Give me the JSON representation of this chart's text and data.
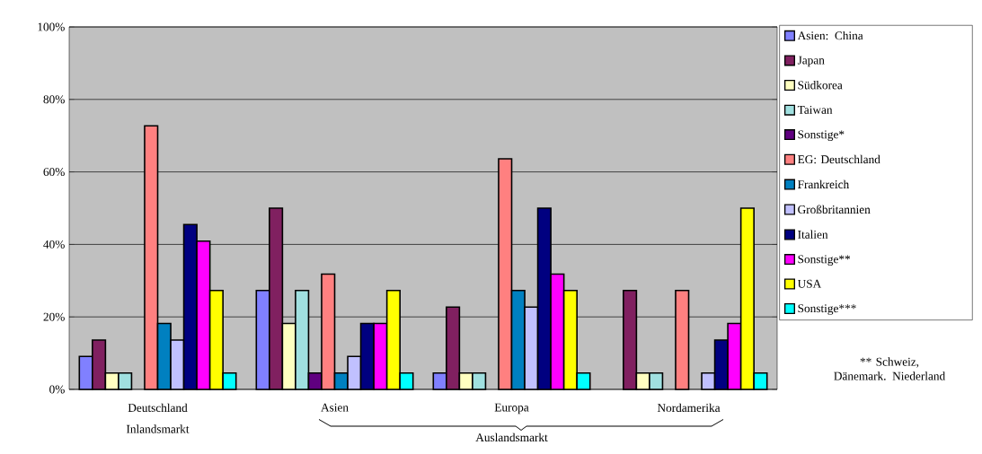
{
  "chart_data": {
    "type": "bar",
    "categories": [
      "Deutschland",
      "Asien",
      "Europa",
      "Nordamerika"
    ],
    "series": [
      {
        "name": "Asien: China",
        "color": "#8080ff",
        "values": [
          9.1,
          27.3,
          4.5,
          0
        ]
      },
      {
        "name": "Japan",
        "color": "#802060",
        "values": [
          13.6,
          50,
          22.7,
          27.3
        ]
      },
      {
        "name": "Südkorea",
        "color": "#ffffc0",
        "values": [
          4.5,
          18.2,
          4.5,
          4.5
        ]
      },
      {
        "name": "Taiwan",
        "color": "#a0e0e0",
        "values": [
          4.5,
          27.3,
          4.5,
          4.5
        ]
      },
      {
        "name": "Sonstige*",
        "color": "#600080",
        "values": [
          0,
          4.5,
          0,
          0
        ]
      },
      {
        "name": "EG: Deutschland",
        "color": "#ff8080",
        "values": [
          72.7,
          31.8,
          63.6,
          27.3
        ]
      },
      {
        "name": "Frankreich",
        "color": "#0080c0",
        "values": [
          18.2,
          4.5,
          27.3,
          0
        ]
      },
      {
        "name": "Großbritannien",
        "color": "#c0c0ff",
        "values": [
          13.6,
          9.1,
          22.7,
          4.5
        ]
      },
      {
        "name": "Italien",
        "color": "#000080",
        "values": [
          45.5,
          18.2,
          50,
          13.6
        ]
      },
      {
        "name": "Sonstige**",
        "color": "#ff00ff",
        "values": [
          40.9,
          18.2,
          31.8,
          18.2
        ]
      },
      {
        "name": "USA",
        "color": "#ffff00",
        "values": [
          27.3,
          27.3,
          27.3,
          50
        ]
      },
      {
        "name": "Sonstige***",
        "color": "#00ffff",
        "values": [
          4.5,
          4.5,
          4.5,
          4.5
        ]
      }
    ],
    "ylim": [
      0,
      100
    ],
    "yticks": [
      {
        "value": 0,
        "label": "0%"
      },
      {
        "value": 20,
        "label": "20%"
      },
      {
        "value": 40,
        "label": "40%"
      },
      {
        "value": 60,
        "label": "60%"
      },
      {
        "value": 80,
        "label": "80%"
      },
      {
        "value": 100,
        "label": "100%"
      }
    ],
    "grid": "y",
    "legend": "right",
    "annotations": [
      "Inlandsmarkt",
      "Auslandsmarkt",
      "** Schweiz,  Dänemark. Niederland"
    ]
  }
}
